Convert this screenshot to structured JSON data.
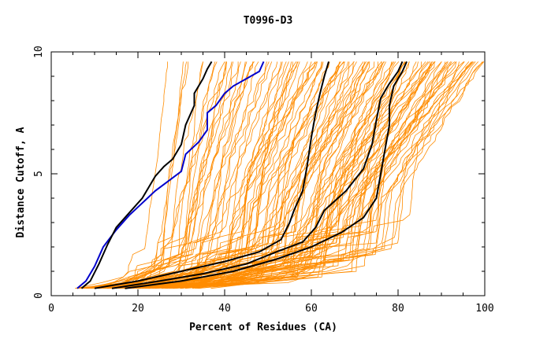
{
  "chart_data": {
    "type": "line",
    "title": "T0996-D3",
    "xlabel": "Percent of Residues (CA)",
    "ylabel": "Distance Cutoff, A",
    "xlim": [
      0,
      100
    ],
    "ylim": [
      0,
      10
    ],
    "x_ticks": [
      0,
      20,
      40,
      60,
      80,
      100
    ],
    "y_ticks": [
      0,
      5,
      10
    ],
    "grid": false,
    "legend": "none",
    "colors": {
      "background_series": "#ff8c00",
      "highlight_blue": "#0000cc",
      "highlight_black": "#000000",
      "axis": "#000000"
    },
    "background_series_count": 120,
    "highlighted_series": [
      {
        "color": "#0000cc",
        "points": [
          [
            6,
            0.3
          ],
          [
            8,
            0.6
          ],
          [
            10,
            1.2
          ],
          [
            12,
            2.0
          ],
          [
            15,
            2.7
          ],
          [
            18,
            3.3
          ],
          [
            21,
            3.8
          ],
          [
            24,
            4.3
          ],
          [
            27,
            4.7
          ],
          [
            30,
            5.1
          ],
          [
            31,
            5.8
          ],
          [
            34,
            6.3
          ],
          [
            36,
            6.8
          ],
          [
            36,
            7.5
          ],
          [
            38,
            7.8
          ],
          [
            40,
            8.3
          ],
          [
            42,
            8.6
          ],
          [
            45,
            8.9
          ],
          [
            48,
            9.2
          ],
          [
            49,
            9.6
          ]
        ]
      },
      {
        "color": "#000000",
        "points": [
          [
            7,
            0.3
          ],
          [
            9,
            0.6
          ],
          [
            11,
            1.3
          ],
          [
            13,
            2.1
          ],
          [
            15,
            2.8
          ],
          [
            18,
            3.4
          ],
          [
            21,
            4.0
          ],
          [
            24,
            4.9
          ],
          [
            26,
            5.3
          ],
          [
            28,
            5.6
          ],
          [
            30,
            6.2
          ],
          [
            31,
            7.0
          ],
          [
            33,
            7.8
          ],
          [
            33,
            8.3
          ],
          [
            35,
            8.9
          ],
          [
            36,
            9.3
          ],
          [
            37,
            9.6
          ]
        ]
      },
      {
        "color": "#000000",
        "points": [
          [
            10,
            0.3
          ],
          [
            20,
            0.6
          ],
          [
            30,
            1.0
          ],
          [
            40,
            1.4
          ],
          [
            48,
            1.8
          ],
          [
            53,
            2.3
          ],
          [
            55,
            3.0
          ],
          [
            56,
            3.5
          ],
          [
            58,
            4.3
          ],
          [
            59,
            5.3
          ],
          [
            60,
            6.5
          ],
          [
            61,
            7.5
          ],
          [
            62,
            8.3
          ],
          [
            63,
            9.0
          ],
          [
            64,
            9.6
          ]
        ]
      },
      {
        "color": "#000000",
        "points": [
          [
            14,
            0.3
          ],
          [
            25,
            0.6
          ],
          [
            35,
            0.9
          ],
          [
            45,
            1.3
          ],
          [
            52,
            1.8
          ],
          [
            58,
            2.2
          ],
          [
            61,
            2.8
          ],
          [
            63,
            3.5
          ],
          [
            68,
            4.3
          ],
          [
            72,
            5.2
          ],
          [
            74,
            6.2
          ],
          [
            75,
            7.2
          ],
          [
            76,
            8.1
          ],
          [
            78,
            8.7
          ],
          [
            80,
            9.2
          ],
          [
            81,
            9.6
          ]
        ]
      },
      {
        "color": "#000000",
        "points": [
          [
            17,
            0.3
          ],
          [
            30,
            0.6
          ],
          [
            42,
            1.0
          ],
          [
            52,
            1.5
          ],
          [
            60,
            2.0
          ],
          [
            67,
            2.6
          ],
          [
            72,
            3.2
          ],
          [
            75,
            4.0
          ],
          [
            76,
            5.0
          ],
          [
            77,
            6.0
          ],
          [
            78,
            7.0
          ],
          [
            78,
            7.8
          ],
          [
            79,
            8.6
          ],
          [
            81,
            9.2
          ],
          [
            82,
            9.6
          ]
        ]
      }
    ]
  }
}
